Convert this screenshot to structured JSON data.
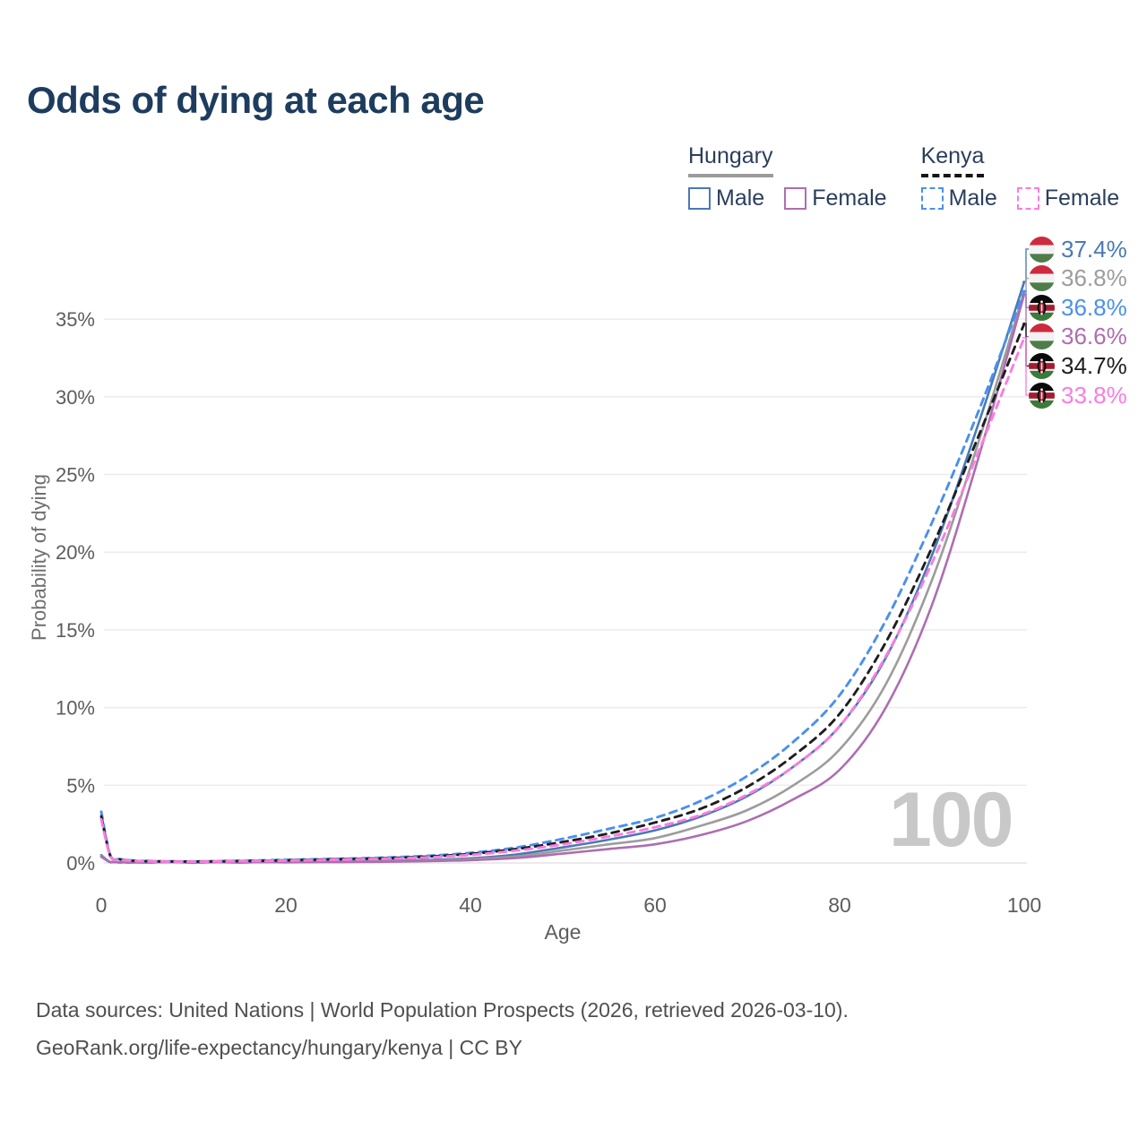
{
  "header": {
    "title": "Odds of dying at each age"
  },
  "legend": {
    "groups": [
      {
        "label": "Hungary",
        "line_style": "solid",
        "underline_color": "#9b9b9b",
        "items": [
          {
            "label": "Male",
            "color": "#4a79b5",
            "dash": false
          },
          {
            "label": "Female",
            "color": "#ae6db1",
            "dash": false
          }
        ]
      },
      {
        "label": "Kenya",
        "line_style": "dashed",
        "underline_color": "#151515",
        "items": [
          {
            "label": "Male",
            "color": "#4a90ee",
            "dash": true
          },
          {
            "label": "Female",
            "color": "#fa7ce0",
            "dash": true
          }
        ]
      }
    ]
  },
  "chart_data": {
    "type": "line",
    "title": "Odds of dying at each age",
    "xlabel": "Age",
    "ylabel": "Probability of dying",
    "xlim": [
      0,
      100
    ],
    "ylim": [
      0,
      37.5
    ],
    "xticks": [
      0,
      20,
      40,
      60,
      80,
      100
    ],
    "yticks": [
      0,
      5,
      10,
      15,
      20,
      25,
      30,
      35
    ],
    "ytick_suffix": "%",
    "grid": "horizontal-only",
    "legend_position": "top-right",
    "watermark": "100",
    "x": [
      0,
      1,
      2,
      3,
      5,
      10,
      15,
      20,
      25,
      30,
      35,
      40,
      45,
      50,
      55,
      60,
      65,
      70,
      75,
      80,
      85,
      90,
      95,
      100
    ],
    "series": [
      {
        "name": "Hungary Male",
        "country": "hungary",
        "sex": "male",
        "color": "#4a79b5",
        "dash": false,
        "end_label": "37.4%",
        "values": [
          0.5,
          0.05,
          0.03,
          0.02,
          0.02,
          0.02,
          0.04,
          0.07,
          0.1,
          0.13,
          0.19,
          0.3,
          0.55,
          1.0,
          1.5,
          2.1,
          3.0,
          4.3,
          6.2,
          8.8,
          13.2,
          19.8,
          28.2,
          37.4
        ]
      },
      {
        "name": "Hungary Both sexes",
        "country": "hungary",
        "sex": "both",
        "color": "#9c9c9c",
        "dash": false,
        "end_label": "36.8%",
        "values": [
          0.45,
          0.05,
          0.03,
          0.02,
          0.02,
          0.02,
          0.03,
          0.05,
          0.08,
          0.1,
          0.15,
          0.24,
          0.42,
          0.8,
          1.2,
          1.6,
          2.4,
          3.4,
          5.0,
          7.3,
          11.5,
          18.2,
          27.0,
          36.8
        ]
      },
      {
        "name": "Kenya Male",
        "country": "kenya",
        "sex": "male",
        "color": "#4a90ee",
        "dash": true,
        "end_label": "36.8%",
        "values": [
          3.3,
          0.45,
          0.25,
          0.18,
          0.12,
          0.1,
          0.14,
          0.2,
          0.26,
          0.33,
          0.45,
          0.65,
          1.0,
          1.55,
          2.2,
          2.9,
          4.0,
          5.6,
          7.8,
          10.8,
          15.6,
          21.9,
          29.0,
          36.8
        ]
      },
      {
        "name": "Hungary Female",
        "country": "hungary",
        "sex": "female",
        "color": "#ae6db1",
        "dash": false,
        "end_label": "36.6%",
        "values": [
          0.4,
          0.04,
          0.02,
          0.02,
          0.01,
          0.01,
          0.02,
          0.04,
          0.05,
          0.07,
          0.11,
          0.18,
          0.32,
          0.6,
          0.9,
          1.2,
          1.8,
          2.7,
          4.1,
          6.0,
          10.0,
          16.6,
          26.0,
          36.6
        ]
      },
      {
        "name": "Kenya Both sexes",
        "country": "kenya",
        "sex": "both",
        "color": "#1e1e1e",
        "dash": true,
        "end_label": "34.7%",
        "values": [
          3.0,
          0.42,
          0.23,
          0.16,
          0.11,
          0.09,
          0.12,
          0.17,
          0.23,
          0.29,
          0.4,
          0.58,
          0.9,
          1.35,
          1.9,
          2.6,
          3.5,
          4.9,
          6.9,
          9.6,
          14.2,
          20.3,
          27.4,
          34.7
        ]
      },
      {
        "name": "Kenya Female",
        "country": "kenya",
        "sex": "female",
        "color": "#fa7ce0",
        "dash": true,
        "end_label": "33.8%",
        "values": [
          2.8,
          0.4,
          0.21,
          0.15,
          0.1,
          0.08,
          0.11,
          0.15,
          0.2,
          0.26,
          0.35,
          0.52,
          0.8,
          1.2,
          1.7,
          2.3,
          3.1,
          4.4,
          6.2,
          8.8,
          13.3,
          19.3,
          26.4,
          33.8
        ]
      }
    ]
  },
  "footer": {
    "line1": "Data sources: United Nations | World Population Prospects (2026, retrieved 2026-03-10).",
    "line2": "GeoRank.org/life-expectancy/hungary/kenya | CC BY"
  }
}
